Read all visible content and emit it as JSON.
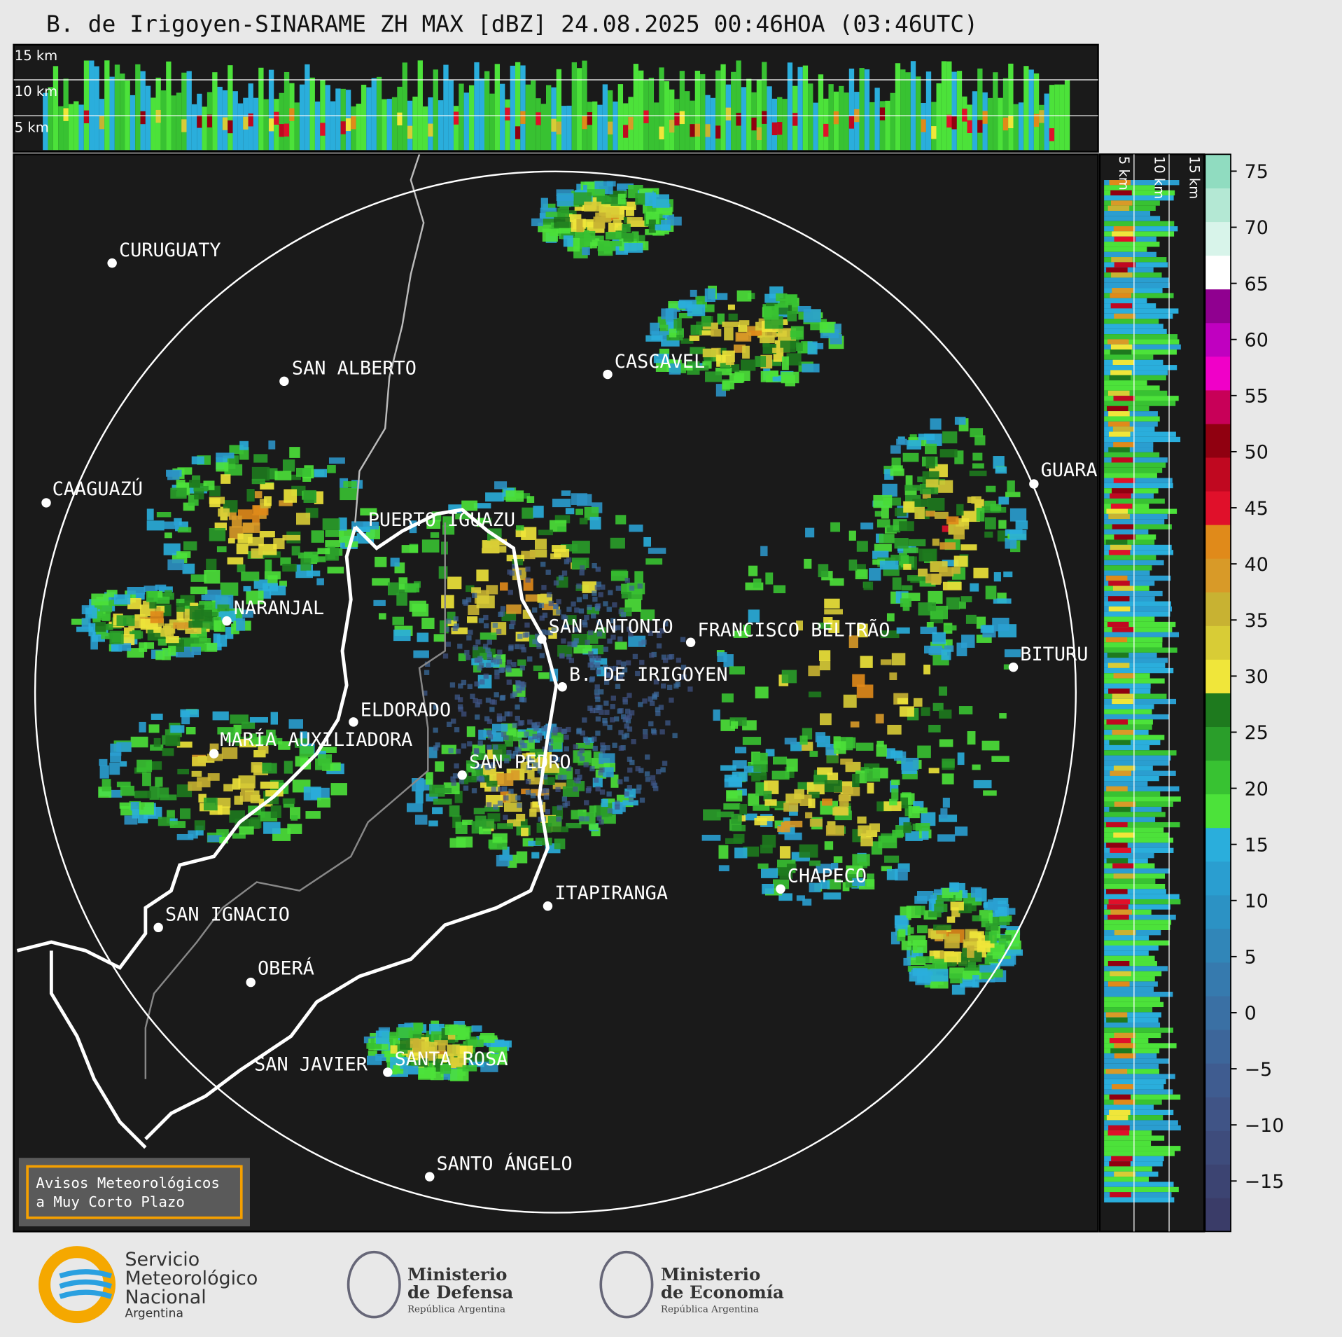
{
  "title": "B. de Irigoyen-SINARAME ZH MAX [dBZ] 24.08.2025 00:46HOA (03:46UTC)",
  "top_panel": {
    "height_labels": [
      "15 km",
      "10 km",
      "5 km"
    ]
  },
  "side_panel": {
    "height_labels": [
      "5 km",
      "10 km",
      "15 km"
    ]
  },
  "cities": [
    "CURUGUATY",
    "SAN ALBERTO",
    "CASCAVEL",
    "CAAGUAZÚ",
    "GUARA",
    "PUERTO IGUAZU",
    "NARANJAL",
    "SAN ANTONIO",
    "FRANCISCO BELTRÃO",
    "B. DE IRIGOYEN",
    "BITURU",
    "ELDORADO",
    "MARÍA AUXILIADORA",
    "SAN PEDRO",
    "CHAPECO",
    "ITAPIRANGA",
    "SAN IGNACIO",
    "OBERÁ",
    "SAN JAVIER",
    "SANTA ROSA",
    "SANTO ÁNGELO"
  ],
  "colorbar": {
    "clim": [
      -19.5,
      76.5
    ],
    "ticks": [
      {
        "value": -15,
        "label": "−15"
      },
      {
        "value": -10,
        "label": "−10"
      },
      {
        "value": -5,
        "label": "−5"
      },
      0,
      5,
      10,
      15,
      20,
      25,
      30,
      35,
      40,
      45,
      50,
      55,
      60,
      65,
      70,
      75
    ],
    "colors": [
      "#3a3c68",
      "#3c4472",
      "#3e4c7c",
      "#405486",
      "#3f5c90",
      "#3d669a",
      "#3a70a4",
      "#367aae",
      "#3186b8",
      "#2c92c4",
      "#2a9ed0",
      "#2aaedc",
      "#4ce23a",
      "#38c232",
      "#2a9e2a",
      "#1e7a1e",
      "#f0e63a",
      "#d8cc36",
      "#c8b232",
      "#d89a28",
      "#e08a1a",
      "#e0102a",
      "#c00820",
      "#900010",
      "#c80058",
      "#f000c8",
      "#c000c0",
      "#900090",
      "#ffffff",
      "#d8f4ea",
      "#b4e8d4",
      "#90dcc0"
    ]
  },
  "warning_box": [
    "Avisos Meteorológicos",
    "a Muy Corto Plazo"
  ],
  "logos": {
    "smn": [
      "Servicio",
      "Meteorológico",
      "Nacional",
      "Argentina"
    ],
    "defensa": [
      "Ministerio",
      "de Defensa",
      "República Argentina"
    ],
    "economia": [
      "Ministerio",
      "de Economía",
      "República Argentina"
    ]
  }
}
